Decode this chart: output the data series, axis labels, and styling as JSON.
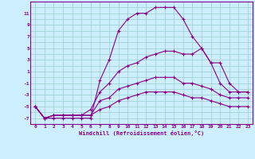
{
  "xlabel": "Windchill (Refroidissement éolien,°C)",
  "background_color": "#cceeff",
  "line_color": "#880088",
  "grid_color": "#99cccc",
  "xlim": [
    -0.5,
    23.5
  ],
  "ylim": [
    -8,
    13
  ],
  "xticks": [
    0,
    1,
    2,
    3,
    4,
    5,
    6,
    7,
    8,
    9,
    10,
    11,
    12,
    13,
    14,
    15,
    16,
    17,
    18,
    19,
    20,
    21,
    22,
    23
  ],
  "ytick_labels": [
    "-7",
    "-5",
    "-3",
    "-1",
    "1",
    "3",
    "5",
    "7",
    "9",
    "11"
  ],
  "ytick_positions": [
    -7,
    -5,
    -3,
    -1,
    1,
    3,
    5,
    7,
    9,
    11
  ],
  "ygrid_positions": [
    -8,
    -7,
    -6,
    -5,
    -4,
    -3,
    -2,
    -1,
    0,
    1,
    2,
    3,
    4,
    5,
    6,
    7,
    8,
    9,
    10,
    11,
    12
  ],
  "series": [
    [
      -5,
      -7,
      -7,
      -7,
      -7,
      -7,
      -7,
      -0.5,
      3,
      8,
      10,
      11,
      11,
      12,
      12,
      12,
      10,
      7,
      5,
      2.5,
      2.5,
      -1,
      -2.5,
      -2.5
    ],
    [
      -5,
      -7,
      -6.5,
      -6.5,
      -6.5,
      -6.5,
      -5.5,
      -2.5,
      -1,
      1,
      2,
      2.5,
      3.5,
      4,
      4.5,
      4.5,
      4,
      4,
      5,
      2.5,
      -1,
      -2.5,
      -2.5,
      -2.5
    ],
    [
      -5,
      -7,
      -6.5,
      -6.5,
      -6.5,
      -6.5,
      -6.5,
      -4,
      -3.5,
      -2,
      -1.5,
      -1,
      -0.5,
      0,
      0,
      0,
      -1,
      -1,
      -1.5,
      -2,
      -3,
      -3.5,
      -3.5,
      -3.5
    ],
    [
      -5,
      -7,
      -6.5,
      -6.5,
      -6.5,
      -6.5,
      -6.5,
      -5.5,
      -5,
      -4,
      -3.5,
      -3,
      -2.5,
      -2.5,
      -2.5,
      -2.5,
      -3,
      -3.5,
      -3.5,
      -4,
      -4.5,
      -5,
      -5,
      -5
    ]
  ]
}
